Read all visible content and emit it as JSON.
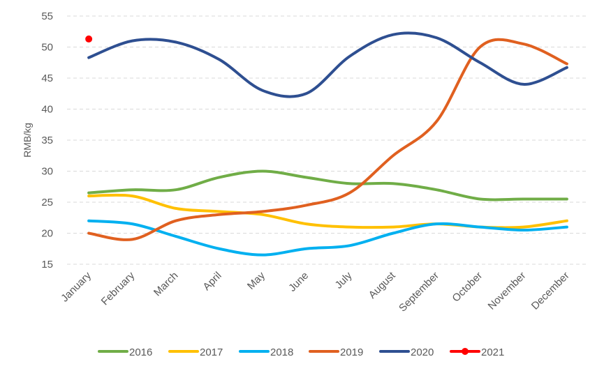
{
  "chart_data": {
    "type": "line",
    "title": "",
    "xlabel": "",
    "ylabel": "RMB/kg",
    "ylim": [
      15,
      55
    ],
    "yticks": [
      15,
      20,
      25,
      30,
      35,
      40,
      45,
      50,
      55
    ],
    "grid": true,
    "legend_position": "bottom",
    "categories": [
      "January",
      "February",
      "March",
      "April",
      "May",
      "June",
      "July",
      "August",
      "September",
      "October",
      "November",
      "December"
    ],
    "series": [
      {
        "name": "2016",
        "color": "#70ad47",
        "marker": false,
        "values": [
          26.5,
          27.0,
          27.0,
          29.0,
          30.0,
          29.0,
          28.0,
          28.0,
          27.0,
          25.5,
          25.5,
          25.5
        ]
      },
      {
        "name": "2017",
        "color": "#ffc000",
        "marker": false,
        "values": [
          26.0,
          26.0,
          24.0,
          23.5,
          23.0,
          21.5,
          21.0,
          21.0,
          21.5,
          21.0,
          21.0,
          22.0
        ]
      },
      {
        "name": "2018",
        "color": "#00b0f0",
        "marker": false,
        "values": [
          22.0,
          21.5,
          19.5,
          17.5,
          16.5,
          17.5,
          18.0,
          20.0,
          21.5,
          21.0,
          20.5,
          21.0
        ]
      },
      {
        "name": "2019",
        "color": "#e06020",
        "marker": false,
        "values": [
          20.0,
          19.0,
          22.0,
          23.0,
          23.5,
          24.5,
          26.5,
          32.5,
          38.0,
          50.0,
          50.5,
          47.3
        ]
      },
      {
        "name": "2020",
        "color": "#2e4f91",
        "marker": false,
        "values": [
          48.3,
          51.0,
          50.8,
          48.0,
          43.0,
          42.5,
          48.5,
          52.0,
          51.5,
          47.5,
          44.0,
          46.7
        ]
      },
      {
        "name": "2021",
        "color": "#ff0000",
        "marker": true,
        "values": [
          51.3,
          null,
          null,
          null,
          null,
          null,
          null,
          null,
          null,
          null,
          null,
          null
        ]
      }
    ]
  }
}
